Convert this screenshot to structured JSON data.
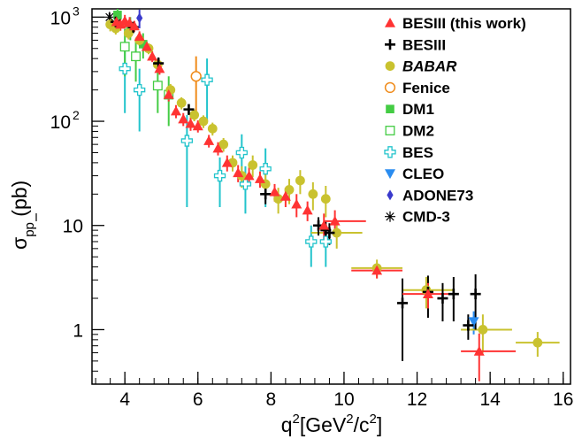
{
  "chart_data": {
    "type": "scatter",
    "xlabel": {
      "base": "q",
      "sup1": "2",
      "mid": "[GeV",
      "sup2": "2",
      "slash": "/c",
      "sup3": "2",
      "end": "]"
    },
    "ylabel": {
      "sigma": "σ",
      "sub": "pp",
      "unit": "(pb)"
    },
    "xlim": [
      3.1,
      16.2
    ],
    "ylim": [
      0.3,
      1200
    ],
    "yscale": "log",
    "xticks": [
      {
        "v": 4,
        "label": "4"
      },
      {
        "v": 6,
        "label": "6"
      },
      {
        "v": 8,
        "label": "8"
      },
      {
        "v": 10,
        "label": "10"
      },
      {
        "v": 12,
        "label": "12"
      },
      {
        "v": 14,
        "label": "14"
      },
      {
        "v": 16,
        "label": "16"
      }
    ],
    "yticks": [
      {
        "v": 1,
        "label": "1"
      },
      {
        "v": 10,
        "label": "10"
      }
    ],
    "ytick_powers": [
      {
        "v": 100,
        "base": "10",
        "exp": "2"
      },
      {
        "v": 1000,
        "base": "10",
        "exp": "3"
      }
    ],
    "legend_position": "top-right",
    "series": [
      {
        "name": "BESIII (this work)",
        "marker": "triangle",
        "color": "#ff3333",
        "bold_red_label": true,
        "points": [
          [
            3.77,
            900,
            150
          ],
          [
            3.88,
            850,
            110
          ],
          [
            4.0,
            920,
            130
          ],
          [
            4.13,
            880,
            120
          ],
          [
            4.26,
            820,
            100
          ],
          [
            4.4,
            650,
            80
          ],
          [
            4.6,
            520,
            60
          ],
          [
            4.75,
            420,
            50
          ],
          [
            4.95,
            320,
            40
          ],
          [
            5.2,
            180,
            25
          ],
          [
            5.4,
            125,
            18
          ],
          [
            5.6,
            105,
            15
          ],
          [
            5.8,
            95,
            14
          ],
          [
            6.0,
            90,
            12
          ],
          [
            6.3,
            65,
            9
          ],
          [
            6.55,
            55,
            8
          ],
          [
            6.8,
            40,
            7
          ],
          [
            7.1,
            32,
            6
          ],
          [
            7.4,
            30,
            6
          ],
          [
            7.7,
            28,
            5
          ],
          [
            8.1,
            21,
            4
          ],
          [
            8.4,
            19,
            4
          ],
          [
            8.7,
            16,
            4
          ],
          [
            9.0,
            14,
            3
          ],
          [
            9.45,
            10,
            3
          ],
          [
            9.75,
            11,
            3
          ],
          [
            10.9,
            3.7,
            0.6
          ],
          [
            12.3,
            2.2,
            0.6
          ],
          [
            13.7,
            0.62,
            0.3
          ]
        ],
        "xerr": {
          "9.75": [
            9.45,
            10.6
          ],
          "10.90": [
            10.2,
            11.6
          ],
          "12.30": [
            11.6,
            13.0
          ],
          "13.70": [
            13.2,
            14.7
          ]
        }
      },
      {
        "name": "BESIII",
        "marker": "plus",
        "color": "#000000",
        "points": [
          [
            3.75,
            900,
            150
          ],
          [
            4.23,
            800,
            100
          ],
          [
            4.92,
            360,
            50
          ],
          [
            5.75,
            130,
            15
          ],
          [
            7.85,
            20,
            4
          ],
          [
            9.3,
            10,
            2
          ],
          [
            9.5,
            9,
            2
          ],
          [
            9.6,
            8.5,
            2
          ],
          [
            11.6,
            1.8,
            1.3
          ],
          [
            12.3,
            2.3,
            1.0
          ],
          [
            12.7,
            2.0,
            0.8
          ],
          [
            13.0,
            2.2,
            1.0
          ],
          [
            13.4,
            1.1,
            0.3
          ],
          [
            13.6,
            2.2,
            1.2
          ]
        ]
      },
      {
        "name": "BABAR",
        "marker": "circle",
        "color": "#c9c22f",
        "points": [
          [
            3.6,
            850,
            120
          ],
          [
            3.75,
            780,
            100
          ],
          [
            4.1,
            700,
            90
          ],
          [
            4.4,
            600,
            70
          ],
          [
            4.65,
            500,
            60
          ],
          [
            4.9,
            350,
            45
          ],
          [
            5.25,
            200,
            28
          ],
          [
            5.55,
            150,
            20
          ],
          [
            5.9,
            115,
            15
          ],
          [
            6.15,
            100,
            14
          ],
          [
            6.4,
            85,
            12
          ],
          [
            6.7,
            60,
            9
          ],
          [
            6.95,
            40,
            7
          ],
          [
            7.2,
            30,
            7
          ],
          [
            7.5,
            38,
            9
          ],
          [
            7.85,
            25,
            6
          ],
          [
            8.2,
            18,
            5
          ],
          [
            8.5,
            22,
            6
          ],
          [
            8.8,
            27,
            7
          ],
          [
            9.15,
            20,
            6
          ],
          [
            9.5,
            18,
            6
          ],
          [
            9.8,
            8.5,
            2.5
          ],
          [
            10.9,
            3.9,
            0.8
          ],
          [
            12.25,
            2.4,
            0.8
          ],
          [
            13.8,
            1.0,
            0.4
          ],
          [
            15.3,
            0.75,
            0.2
          ]
        ],
        "xerr": {
          "9.80": [
            9.1,
            10.5
          ],
          "10.90": [
            10.2,
            11.6
          ],
          "12.25": [
            11.6,
            13.0
          ],
          "13.80": [
            13.2,
            14.6
          ],
          "15.30": [
            14.7,
            15.9
          ]
        }
      },
      {
        "name": "Fenice",
        "marker": "circle-open",
        "color": "#f08c1c",
        "points": [
          [
            5.95,
            270,
            150
          ]
        ]
      },
      {
        "name": "DM1",
        "marker": "square",
        "color": "#44cc44",
        "points": [
          [
            3.8,
            1050,
            300
          ],
          [
            4.15,
            800,
            200
          ],
          [
            4.5,
            550,
            150
          ]
        ]
      },
      {
        "name": "DM2",
        "marker": "square-open",
        "color": "#44cc44",
        "points": [
          [
            4.0,
            520,
            250
          ],
          [
            4.3,
            420,
            180
          ],
          [
            4.9,
            220,
            100
          ],
          [
            5.2,
            180,
            90
          ]
        ]
      },
      {
        "name": "BES",
        "marker": "plus-open",
        "color": "#22c4cc",
        "points": [
          [
            4.0,
            320,
            200
          ],
          [
            4.4,
            200,
            120
          ],
          [
            5.7,
            65,
            50
          ],
          [
            6.25,
            250,
            150
          ],
          [
            6.6,
            30,
            15
          ],
          [
            7.2,
            50,
            25
          ],
          [
            7.3,
            25,
            12
          ],
          [
            7.85,
            35,
            20
          ],
          [
            9.1,
            7,
            3
          ],
          [
            9.5,
            7,
            3
          ]
        ]
      },
      {
        "name": "CLEO",
        "marker": "triangle-down",
        "color": "#2a8cf0",
        "points": [
          [
            13.55,
            1.2,
            0.3
          ]
        ]
      },
      {
        "name": "ADONE73",
        "marker": "diamond",
        "color": "#3a3acc",
        "points": [
          [
            4.4,
            980,
            200
          ]
        ]
      },
      {
        "name": "CMD-3",
        "marker": "asterisk",
        "color": "#000000",
        "points": [
          [
            3.58,
            1000,
            100
          ],
          [
            3.8,
            900,
            80
          ]
        ]
      }
    ]
  }
}
